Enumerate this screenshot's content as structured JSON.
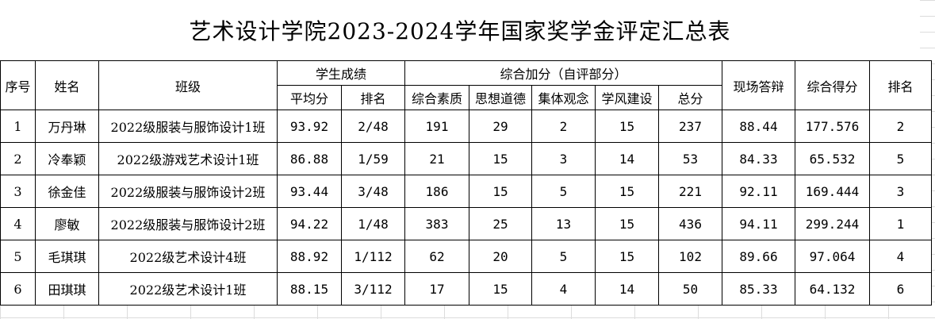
{
  "title": "艺术设计学院2023-2024学年国家奖学金评定汇总表",
  "headers": {
    "seq": "序号",
    "name": "姓名",
    "class": "班级",
    "grades_group": "学生成绩",
    "avg_score": "平均分",
    "grade_rank": "排名",
    "bonus_group": "综合加分（自评部分）",
    "quality": "综合素质",
    "ideology": "思想道德",
    "collective": "集体观念",
    "study_style": "学风建设",
    "bonus_total": "总分",
    "defense": "现场答辩",
    "composite": "综合得分",
    "final_rank": "排名"
  },
  "rows": [
    {
      "seq": "1",
      "name": "万丹琳",
      "class": "2022级服装与服饰设计1班",
      "avg": "93.92",
      "rank": "2/48",
      "quality": "191",
      "ideology": "29",
      "collective": "2",
      "study": "15",
      "total": "237",
      "defense": "88.44",
      "composite": "177.576",
      "final": "2"
    },
    {
      "seq": "2",
      "name": "冷奉颖",
      "class": "2022级游戏艺术设计1班",
      "avg": "86.88",
      "rank": "1/59",
      "quality": "21",
      "ideology": "15",
      "collective": "3",
      "study": "14",
      "total": "53",
      "defense": "84.33",
      "composite": "65.532",
      "final": "5"
    },
    {
      "seq": "3",
      "name": "徐金佳",
      "class": "2022级服装与服饰设计2班",
      "avg": "93.44",
      "rank": "3/48",
      "quality": "186",
      "ideology": "15",
      "collective": "5",
      "study": "15",
      "total": "221",
      "defense": "92.11",
      "composite": "169.444",
      "final": "3"
    },
    {
      "seq": "4",
      "name": "廖敏",
      "class": "2022级服装与服饰设计2班",
      "avg": "94.22",
      "rank": "1/48",
      "quality": "383",
      "ideology": "25",
      "collective": "13",
      "study": "15",
      "total": "436",
      "defense": "94.11",
      "composite": "299.244",
      "final": "1"
    },
    {
      "seq": "5",
      "name": "毛琪琪",
      "class": "2022级艺术设计4班",
      "avg": "88.92",
      "rank": "1/112",
      "quality": "62",
      "ideology": "20",
      "collective": "5",
      "study": "15",
      "total": "102",
      "defense": "89.66",
      "composite": "97.064",
      "final": "4"
    },
    {
      "seq": "6",
      "name": "田琪琪",
      "class": "2022级艺术设计1班",
      "avg": "88.15",
      "rank": "3/112",
      "quality": "17",
      "ideology": "15",
      "collective": "4",
      "study": "14",
      "total": "50",
      "defense": "85.33",
      "composite": "64.132",
      "final": "6"
    }
  ]
}
